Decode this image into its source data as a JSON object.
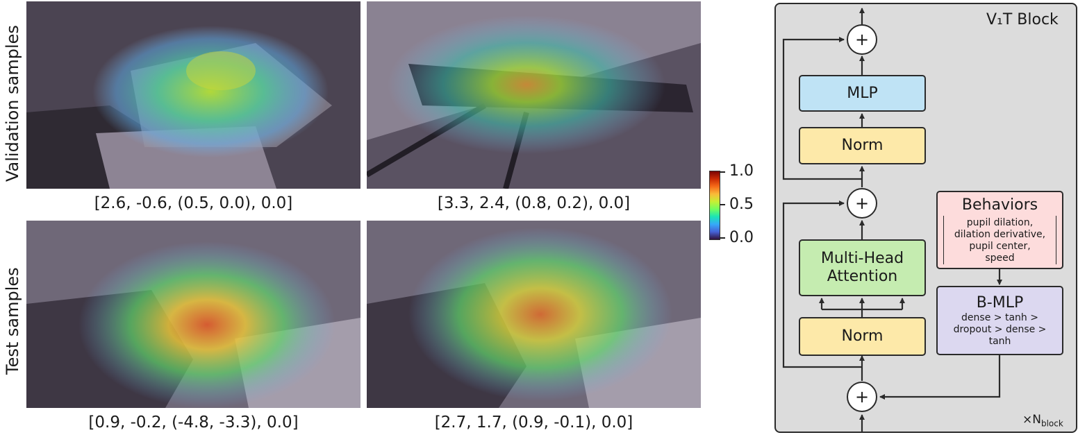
{
  "row_labels": {
    "validation": "Validation samples",
    "test": "Test samples"
  },
  "panels": [
    {
      "caption": "[2.6, -0.6, (0.5, 0.0), 0.0]"
    },
    {
      "caption": "[3.3, 2.4, (0.8, 0.2), 0.0]"
    },
    {
      "caption": "[0.9, -0.2, (-4.8, -3.3), 0.0]"
    },
    {
      "caption": "[2.7, 1.7, (0.9, -0.1), 0.0]"
    }
  ],
  "colorbar": {
    "max": "1.0",
    "mid": "0.5",
    "min": "0.0"
  },
  "block": {
    "title": "V₁T Block",
    "mlp": "MLP",
    "norm_top": "Norm",
    "mha": "Multi-Head Attention",
    "norm_bottom": "Norm",
    "behaviors": {
      "title": "Behaviors",
      "items": "pupil dilation, dilation derivative, pupil center, speed"
    },
    "bmlp": {
      "title": "B-MLP",
      "layers": "dense > tanh > dropout > dense > tanh"
    },
    "plus": "+",
    "repeat": "×",
    "repeat_n": "N",
    "repeat_sub": "block"
  },
  "colors": {
    "mlp": "#bfe3f5",
    "norm": "#fde9a9",
    "mha": "#c5ecb0",
    "behaviors": "#fddcdc",
    "bmlp": "#dcd8f0",
    "block_bg": "#dcdcdc"
  }
}
